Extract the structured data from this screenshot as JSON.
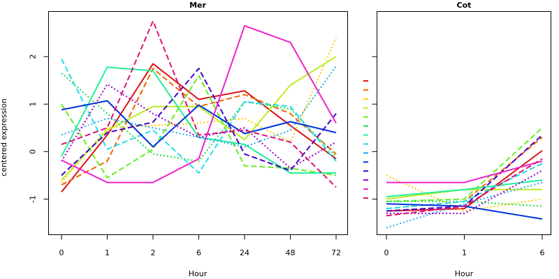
{
  "chart_data": [
    {
      "type": "line",
      "title": "Mer",
      "xlabel": "Hour",
      "ylabel": "centered expression",
      "categories": [
        "0",
        "1",
        "2",
        "6",
        "24",
        "48",
        "72"
      ],
      "ylim": [
        -1.75,
        2.95
      ],
      "yticks": [
        -1,
        0,
        1,
        2
      ],
      "grid": false,
      "legend": "none",
      "series": [
        {
          "color": "#dd1111",
          "dash": "solid",
          "values": [
            -0.85,
            0.35,
            1.85,
            1.1,
            1.28,
            0.55,
            -0.15
          ]
        },
        {
          "color": "#ee6600",
          "dash": "dashed",
          "values": [
            -0.7,
            -0.2,
            1.75,
            0.95,
            1.2,
            0.8,
            -0.05
          ]
        },
        {
          "color": "#ffcc00",
          "dash": "dotted",
          "values": [
            -0.65,
            0.5,
            0.55,
            0.6,
            0.7,
            0.2,
            2.4
          ]
        },
        {
          "color": "#bbee22",
          "dash": "solid",
          "values": [
            -0.6,
            0.45,
            0.95,
            0.95,
            0.25,
            1.4,
            2.0
          ]
        },
        {
          "color": "#66ee22",
          "dash": "dashed",
          "values": [
            1.0,
            -0.55,
            0.05,
            1.6,
            -0.3,
            -0.35,
            -0.5
          ]
        },
        {
          "color": "#22dd44",
          "dash": "dotted",
          "values": [
            1.65,
            0.8,
            -0.05,
            -0.2,
            1.05,
            0.9,
            -0.1
          ]
        },
        {
          "color": "#22ee99",
          "dash": "solid",
          "values": [
            -0.1,
            1.78,
            1.7,
            0.3,
            0.15,
            -0.45,
            -0.45
          ]
        },
        {
          "color": "#22ddee",
          "dash": "dashed",
          "values": [
            1.95,
            0.05,
            0.45,
            -0.45,
            1.05,
            0.95,
            -0.2
          ]
        },
        {
          "color": "#22aaee",
          "dash": "dotted",
          "values": [
            0.35,
            0.7,
            0.5,
            0.3,
            0.1,
            0.45,
            1.8
          ]
        },
        {
          "color": "#0033dd",
          "dash": "solid",
          "values": [
            0.88,
            1.07,
            0.1,
            0.98,
            0.38,
            0.63,
            0.4
          ]
        },
        {
          "color": "#4400cc",
          "dash": "dashed",
          "values": [
            -0.5,
            0.4,
            0.62,
            1.75,
            -0.05,
            -0.4,
            0.8
          ]
        },
        {
          "color": "#9900cc",
          "dash": "dotted",
          "values": [
            -0.2,
            1.42,
            0.8,
            0.3,
            0.5,
            -0.35,
            0.2
          ]
        },
        {
          "color": "#ee22cc",
          "dash": "solid",
          "values": [
            -0.18,
            -0.65,
            -0.65,
            -0.15,
            2.65,
            2.3,
            0.6
          ]
        },
        {
          "color": "#dd1177",
          "dash": "dashed",
          "values": [
            0.15,
            0.5,
            2.75,
            0.35,
            0.45,
            0.2,
            -0.75
          ]
        }
      ]
    },
    {
      "type": "line",
      "title": "Cot",
      "xlabel": "Hour",
      "ylabel": "",
      "categories": [
        "0",
        "1",
        "6"
      ],
      "ylim": [
        -1.75,
        2.95
      ],
      "grid": false,
      "legend": "none",
      "series": [
        {
          "color": "#dd1111",
          "dash": "solid",
          "values": [
            -1.25,
            -1.2,
            0.02
          ]
        },
        {
          "color": "#ee6600",
          "dash": "dashed",
          "values": [
            -1.2,
            -1.05,
            0.3
          ]
        },
        {
          "color": "#ffcc00",
          "dash": "dotted",
          "values": [
            -0.5,
            -1.25,
            -1.0
          ]
        },
        {
          "color": "#bbee22",
          "dash": "solid",
          "values": [
            -1.0,
            -0.8,
            -0.8
          ]
        },
        {
          "color": "#66ee22",
          "dash": "dashed",
          "values": [
            -1.05,
            -1.0,
            0.5
          ]
        },
        {
          "color": "#22dd44",
          "dash": "dotted",
          "values": [
            -1.05,
            -1.05,
            -1.15
          ]
        },
        {
          "color": "#22ee99",
          "dash": "solid",
          "values": [
            -0.95,
            -0.8,
            -0.6
          ]
        },
        {
          "color": "#22ddee",
          "dash": "dashed",
          "values": [
            -1.2,
            -1.05,
            -0.25
          ]
        },
        {
          "color": "#22aaee",
          "dash": "dotted",
          "values": [
            -1.6,
            -1.1,
            -0.65
          ]
        },
        {
          "color": "#0033dd",
          "dash": "solid",
          "values": [
            -1.1,
            -1.15,
            -1.42
          ]
        },
        {
          "color": "#4400cc",
          "dash": "dashed",
          "values": [
            -1.25,
            -1.15,
            0.35
          ]
        },
        {
          "color": "#9900cc",
          "dash": "dotted",
          "values": [
            -1.3,
            -1.3,
            -0.4
          ]
        },
        {
          "color": "#ee22cc",
          "dash": "solid",
          "values": [
            -0.65,
            -0.65,
            -0.2
          ]
        },
        {
          "color": "#dd1177",
          "dash": "dashed",
          "values": [
            -1.35,
            -1.15,
            -0.15
          ]
        }
      ]
    }
  ]
}
